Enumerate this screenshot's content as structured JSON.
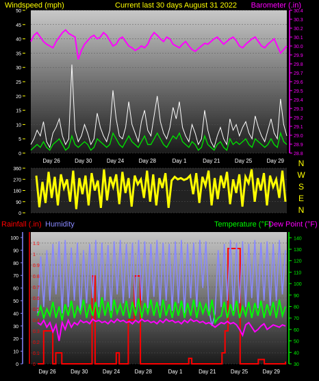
{
  "header": {
    "left_label": "Windspeed (mph)",
    "center_label": "Current last 30 days August 31 2022",
    "right_label": "Barometer (.in)"
  },
  "colors": {
    "background": "#000000",
    "windspeed": "#ffffff",
    "gust": "#00dd00",
    "barometer": "#ff00ff",
    "direction": "#ffff00",
    "rainfall": "#ff0000",
    "humidity": "#8888ff",
    "temperature": "#00ff00",
    "dewpoint": "#ff00ff",
    "title_yellow": "#ffff00"
  },
  "date_ticks_top": [
    "Day 26",
    "Day 30",
    "Day 24",
    "Day 28",
    "Day 1",
    "Day 21",
    "Day 25",
    "Day 29"
  ],
  "date_ticks_bottom": [
    "Day 26",
    "Day 30",
    "Day 24",
    "Day 28",
    "Day 1",
    "Day 21",
    "Day 25",
    "Day 29"
  ],
  "direction_panel": {
    "compass_labels": [
      "N",
      "W",
      "S",
      "E",
      "N"
    ]
  },
  "bottom_header": {
    "rainfall_label": "Rainfall (.in)",
    "humidity_label": "Humidity",
    "temperature_label": "Temperature (°F)",
    "dewpoint_label": "Dew Point (°F)"
  },
  "chart_data": [
    {
      "type": "line",
      "title": "Current last 30 days August 31 2022",
      "ylabel": "Windspeed (mph)",
      "ylim": [
        0,
        50
      ],
      "y_ticks": [
        "0",
        "5",
        "10",
        "15",
        "20",
        "25",
        "30",
        "35",
        "40",
        "45",
        "50"
      ],
      "y2label": "Barometer (.in)",
      "y2lim": [
        28.8,
        30.4
      ],
      "y2_ticks": [
        "28.8",
        "28.9",
        "29.0",
        "29.1",
        "29.2",
        "29.3",
        "29.4",
        "29.5",
        "29.6",
        "29.7",
        "29.8",
        "29.9",
        "30.0",
        "30.1",
        "30.2",
        "30.3",
        "30.4"
      ],
      "x_ticks": [
        "Day 26",
        "Day 30",
        "Day 24",
        "Day 28",
        "Day 1",
        "Day 21",
        "Day 25",
        "Day 29"
      ],
      "grid": true,
      "series": [
        {
          "name": "Windspeed (mph)",
          "axis": "left",
          "color": "#ffffff",
          "values": [
            3,
            5,
            8,
            6,
            11,
            4,
            2,
            7,
            9,
            12,
            6,
            3,
            5,
            31,
            8,
            4,
            6,
            10,
            7,
            3,
            5,
            14,
            9,
            6,
            4,
            8,
            22,
            12,
            6,
            5,
            9,
            18,
            10,
            7,
            4,
            11,
            15,
            8,
            6,
            13,
            20,
            11,
            7,
            5,
            9,
            16,
            12,
            18,
            9,
            6,
            4,
            10,
            7,
            3,
            5,
            15,
            8,
            4,
            2,
            6,
            9,
            5,
            3,
            12,
            8,
            10,
            6,
            9,
            11,
            7,
            5,
            13,
            9,
            6,
            4,
            8,
            12,
            7,
            5,
            19,
            10,
            6
          ]
        },
        {
          "name": "Gust (mph)",
          "axis": "left",
          "color": "#00dd00",
          "values": [
            1,
            2,
            3,
            2,
            4,
            2,
            1,
            3,
            4,
            5,
            3,
            1,
            2,
            6,
            3,
            2,
            3,
            4,
            3,
            1,
            2,
            5,
            4,
            3,
            2,
            3,
            7,
            5,
            3,
            2,
            4,
            6,
            4,
            3,
            2,
            4,
            6,
            3,
            3,
            5,
            7,
            5,
            3,
            2,
            4,
            6,
            5,
            7,
            4,
            3,
            2,
            4,
            3,
            1,
            2,
            6,
            3,
            2,
            1,
            3,
            4,
            2,
            1,
            5,
            3,
            4,
            3,
            4,
            5,
            3,
            2,
            5,
            4,
            3,
            2,
            3,
            5,
            3,
            2,
            7,
            4,
            3
          ]
        },
        {
          "name": "Barometer (.in)",
          "axis": "right",
          "color": "#ff00ff",
          "values": [
            30.05,
            30.12,
            30.15,
            30.1,
            30.05,
            30.02,
            30.0,
            29.98,
            30.05,
            30.1,
            30.15,
            30.18,
            30.14,
            30.12,
            30.1,
            29.85,
            29.95,
            30.02,
            30.06,
            30.1,
            30.12,
            30.08,
            30.1,
            30.15,
            30.12,
            30.06,
            30.0,
            30.02,
            30.08,
            30.1,
            30.05,
            30.0,
            29.98,
            29.95,
            29.97,
            30.0,
            29.98,
            30.02,
            30.1,
            30.15,
            30.12,
            30.08,
            30.05,
            30.1,
            30.08,
            30.02,
            30.0,
            29.98,
            30.02,
            30.05,
            30.0,
            29.96,
            29.94,
            29.97,
            30.0,
            30.03,
            30.02,
            30.05,
            30.08,
            30.1,
            30.06,
            30.02,
            30.05,
            30.08,
            30.1,
            30.06,
            30.0,
            29.98,
            30.02,
            30.05,
            30.08,
            30.1,
            30.05,
            30.0,
            29.98,
            30.02,
            30.05,
            30.08,
            30.0,
            29.92,
            29.96,
            30.0
          ]
        }
      ]
    },
    {
      "type": "line",
      "ylabel": "",
      "ylim": [
        0,
        360
      ],
      "y_ticks": [
        "0",
        "90",
        "180",
        "270",
        "360"
      ],
      "x_ticks": [],
      "grid": true,
      "series": [
        {
          "name": "Wind direction",
          "color": "#ffff00",
          "values": [
            300,
            45,
            250,
            80,
            330,
            120,
            290,
            60,
            310,
            200,
            270,
            90,
            340,
            30,
            280,
            150,
            300,
            60,
            320,
            180,
            260,
            40,
            350,
            100,
            290,
            210,
            310,
            70,
            330,
            160,
            280,
            50,
            300,
            230,
            270,
            120,
            340,
            90,
            310,
            60,
            280,
            200,
            320,
            40,
            260,
            290,
            270,
            280,
            265,
            275,
            300,
            150,
            320,
            80,
            290,
            220,
            340,
            60,
            280,
            110,
            300,
            200,
            330,
            70,
            270,
            160,
            310,
            50,
            290,
            240,
            350,
            90,
            280,
            180,
            320,
            60,
            300,
            210,
            270,
            120,
            340,
            90
          ]
        }
      ]
    },
    {
      "type": "line",
      "ylabel": "Rainfall (.in)",
      "ylim": [
        0,
        1.2
      ],
      "y_ticks": [
        "0",
        "0.1",
        "0.2",
        "0.3",
        "0.4",
        "0.5",
        "0.6",
        "0.7",
        "0.8",
        "0.9",
        "1",
        "1.1"
      ],
      "y_humidity_ticks": [
        "0",
        "10",
        "20",
        "30",
        "40",
        "50",
        "60",
        "70",
        "80",
        "90",
        "100"
      ],
      "y_temp_ticks": [
        "30",
        "40",
        "50",
        "60",
        "70",
        "80",
        "90",
        "100",
        "110",
        "120",
        "130",
        "140"
      ],
      "humidity_lim": [
        0,
        100
      ],
      "temp_lim": [
        30,
        145
      ],
      "x_ticks": [
        "Day 26",
        "Day 30",
        "Day 24",
        "Day 28",
        "Day 1",
        "Day 21",
        "Day 25",
        "Day 29"
      ],
      "grid": true,
      "series": [
        {
          "name": "Rainfall (.in)",
          "axis": "rain",
          "color": "#ff0000",
          "values": [
            0,
            0,
            0.3,
            0.3,
            0.3,
            0,
            0.1,
            0.1,
            0,
            0,
            0,
            0,
            0,
            0,
            0,
            0,
            0,
            0,
            0.8,
            0,
            0,
            0,
            0,
            0,
            0,
            0,
            0.1,
            0,
            0,
            0,
            0.4,
            0.4,
            0.8,
            0.8,
            0,
            0,
            0,
            0,
            0,
            0,
            0,
            0,
            0,
            0,
            0,
            0,
            0,
            0,
            0,
            0,
            0.05,
            0,
            0,
            0,
            0,
            0,
            0,
            0,
            0,
            0,
            0,
            0.1,
            0.3,
            1.05,
            1.05,
            1.05,
            1.05,
            0,
            0,
            0,
            0,
            0,
            0,
            0.04,
            0.04,
            0,
            0,
            0,
            0,
            0,
            0,
            0,
            0.02
          ]
        },
        {
          "name": "Humidity",
          "axis": "humidity",
          "color": "#8888ff",
          "values": [
            40,
            85,
            45,
            90,
            50,
            95,
            55,
            97,
            40,
            98,
            45,
            92,
            50,
            96,
            40,
            90,
            48,
            95,
            52,
            98,
            45,
            96,
            50,
            94,
            42,
            97,
            55,
            98,
            48,
            95,
            52,
            96,
            45,
            98,
            50,
            97,
            44,
            95,
            53,
            98,
            46,
            96,
            50,
            95,
            42,
            97,
            48,
            98,
            40,
            95,
            52,
            96,
            45,
            98,
            60,
            97,
            42,
            30,
            40,
            90,
            45,
            95,
            50,
            98,
            42,
            96,
            48,
            97,
            45,
            95,
            52,
            98,
            44,
            96,
            50,
            97,
            46,
            95,
            50,
            98,
            55,
            90
          ]
        },
        {
          "name": "Temperature (°F)",
          "axis": "temp",
          "color": "#00ff00",
          "values": [
            72,
            80,
            70,
            78,
            72,
            84,
            70,
            80,
            68,
            82,
            72,
            85,
            70,
            80,
            74,
            86,
            70,
            82,
            72,
            84,
            70,
            88,
            72,
            84,
            70,
            86,
            74,
            82,
            72,
            85,
            70,
            84,
            72,
            87,
            70,
            83,
            74,
            86,
            72,
            84,
            70,
            86,
            72,
            82,
            70,
            84,
            72,
            85,
            70,
            83,
            72,
            86,
            70,
            84,
            74,
            82,
            72,
            86,
            66,
            70,
            72,
            84,
            70,
            82,
            72,
            85,
            70,
            80,
            72,
            84,
            70,
            83,
            72,
            85,
            70,
            82,
            72,
            84,
            70,
            86,
            72,
            80
          ]
        },
        {
          "name": "Dew Point (°F)",
          "axis": "temp",
          "color": "#ff00ff",
          "values": [
            66,
            64,
            68,
            62,
            66,
            58,
            64,
            50,
            66,
            60,
            68,
            62,
            66,
            64,
            68,
            66,
            67,
            65,
            69,
            67,
            68,
            66,
            67,
            65,
            68,
            66,
            69,
            67,
            68,
            66,
            67,
            65,
            68,
            66,
            69,
            67,
            68,
            66,
            67,
            65,
            68,
            66,
            69,
            67,
            68,
            66,
            67,
            65,
            68,
            66,
            69,
            67,
            68,
            66,
            67,
            65,
            66,
            64,
            62,
            64,
            66,
            65,
            67,
            65,
            66,
            64,
            60,
            55,
            64,
            66,
            62,
            58,
            60,
            63,
            65,
            60,
            62,
            64,
            63,
            62,
            64,
            63
          ]
        }
      ]
    }
  ]
}
